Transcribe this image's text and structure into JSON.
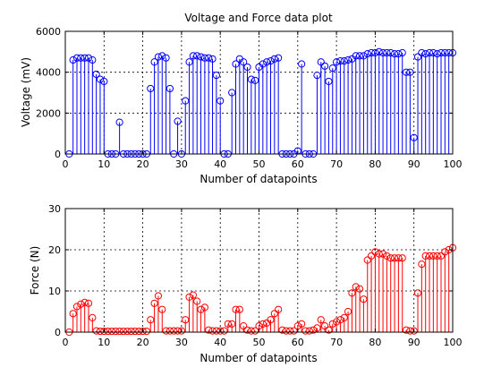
{
  "chart_data": [
    {
      "type": "stem",
      "title": "Voltage and Force data plot",
      "xlabel": "Number of datapoints",
      "ylabel": "Voltage (mV)",
      "xlim": [
        0,
        100
      ],
      "ylim": [
        0,
        6000
      ],
      "xticks": [
        "0",
        "10",
        "20",
        "30",
        "40",
        "50",
        "60",
        "70",
        "80",
        "90",
        "100"
      ],
      "yticks": [
        "0",
        "2000",
        "4000",
        "6000"
      ],
      "grid": true,
      "color": "#0000ff",
      "x": [
        1,
        2,
        3,
        4,
        5,
        6,
        7,
        8,
        9,
        10,
        11,
        12,
        13,
        14,
        15,
        16,
        17,
        18,
        19,
        20,
        21,
        22,
        23,
        24,
        25,
        26,
        27,
        28,
        29,
        30,
        31,
        32,
        33,
        34,
        35,
        36,
        37,
        38,
        39,
        40,
        41,
        42,
        43,
        44,
        45,
        46,
        47,
        48,
        49,
        50,
        51,
        52,
        53,
        54,
        55,
        56,
        57,
        58,
        59,
        60,
        61,
        62,
        63,
        64,
        65,
        66,
        67,
        68,
        69,
        70,
        71,
        72,
        73,
        74,
        75,
        76,
        77,
        78,
        79,
        80,
        81,
        82,
        83,
        84,
        85,
        86,
        87,
        88,
        89,
        90,
        91,
        92,
        93,
        94,
        95,
        96,
        97,
        98,
        99,
        100
      ],
      "values": [
        0,
        4600,
        4700,
        4700,
        4700,
        4700,
        4600,
        3900,
        3650,
        3550,
        0,
        0,
        0,
        1550,
        0,
        0,
        0,
        0,
        0,
        0,
        0,
        3200,
        4500,
        4750,
        4800,
        4700,
        3200,
        0,
        1600,
        0,
        2600,
        4500,
        4800,
        4800,
        4750,
        4700,
        4700,
        4650,
        3850,
        2600,
        0,
        0,
        3000,
        4400,
        4650,
        4500,
        4250,
        3650,
        3600,
        4250,
        4400,
        4500,
        4550,
        4650,
        4700,
        0,
        0,
        0,
        0,
        150,
        4400,
        0,
        0,
        0,
        3850,
        4500,
        4300,
        3550,
        4200,
        4500,
        4550,
        4550,
        4600,
        4650,
        4800,
        4800,
        4800,
        4900,
        4950,
        4950,
        5000,
        4950,
        4950,
        4950,
        4900,
        4900,
        4950,
        4000,
        4000,
        800,
        4750,
        4950,
        4900,
        4950,
        4950,
        4900,
        4950,
        4950,
        4950,
        4950
      ]
    },
    {
      "type": "stem",
      "title": "",
      "xlabel": "Number of datapoints",
      "ylabel": "Force (N)",
      "xlim": [
        0,
        100
      ],
      "ylim": [
        0,
        30
      ],
      "xticks": [
        "0",
        "10",
        "20",
        "30",
        "40",
        "50",
        "60",
        "70",
        "80",
        "90",
        "100"
      ],
      "yticks": [
        "0",
        "10",
        "20",
        "30"
      ],
      "grid": true,
      "color": "#ff0000",
      "x": [
        1,
        2,
        3,
        4,
        5,
        6,
        7,
        8,
        9,
        10,
        11,
        12,
        13,
        14,
        15,
        16,
        17,
        18,
        19,
        20,
        21,
        22,
        23,
        24,
        25,
        26,
        27,
        28,
        29,
        30,
        31,
        32,
        33,
        34,
        35,
        36,
        37,
        38,
        39,
        40,
        41,
        42,
        43,
        44,
        45,
        46,
        47,
        48,
        49,
        50,
        51,
        52,
        53,
        54,
        55,
        56,
        57,
        58,
        59,
        60,
        61,
        62,
        63,
        64,
        65,
        66,
        67,
        68,
        69,
        70,
        71,
        72,
        73,
        74,
        75,
        76,
        77,
        78,
        79,
        80,
        81,
        82,
        83,
        84,
        85,
        86,
        87,
        88,
        89,
        90,
        91,
        92,
        93,
        94,
        95,
        96,
        97,
        98,
        99,
        100
      ],
      "values": [
        0,
        4.5,
        6.2,
        6.8,
        7.2,
        7.0,
        3.5,
        0.3,
        0.2,
        0.2,
        0.2,
        0.2,
        0.2,
        0.2,
        0.2,
        0.2,
        0.2,
        0.2,
        0.2,
        0.2,
        0.2,
        3.0,
        7.0,
        8.8,
        5.5,
        0.3,
        0.3,
        0.3,
        0.3,
        0.3,
        3.0,
        8.5,
        9.0,
        7.5,
        5.5,
        6.0,
        0.5,
        0.3,
        0.3,
        0.3,
        0.3,
        2.0,
        2.0,
        5.5,
        5.5,
        1.5,
        0.5,
        0.3,
        0.3,
        1.5,
        2.0,
        2.2,
        3.0,
        4.5,
        5.5,
        0.5,
        0.3,
        0.3,
        0.3,
        1.5,
        2.0,
        0.3,
        0.3,
        0.5,
        1.0,
        3.0,
        1.5,
        0.5,
        2.0,
        2.5,
        3.0,
        3.5,
        5.0,
        9.5,
        11.0,
        10.5,
        8.0,
        17.5,
        18.5,
        19.5,
        19.0,
        19.0,
        18.5,
        18.0,
        18.0,
        18.0,
        18.0,
        0.5,
        0.3,
        0.3,
        9.5,
        16.5,
        18.5,
        18.5,
        18.5,
        18.5,
        18.5,
        19.5,
        20.0,
        20.5
      ]
    }
  ]
}
